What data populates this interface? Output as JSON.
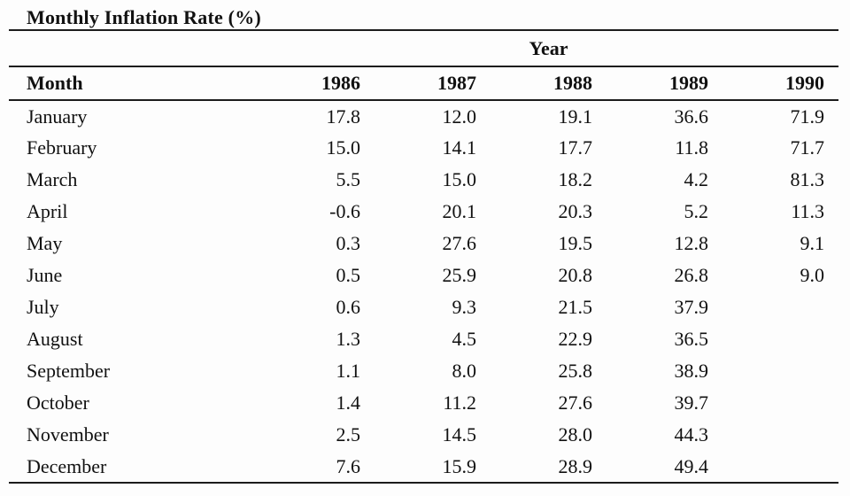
{
  "page": {
    "title": "Monthly Inflation Rate (%)"
  },
  "table": {
    "group_header": "Year",
    "month_header": "Month",
    "years": [
      "1986",
      "1987",
      "1988",
      "1989",
      "1990"
    ],
    "rows": [
      {
        "month": "January",
        "values": [
          "17.8",
          "12.0",
          "19.1",
          "36.6",
          "71.9"
        ]
      },
      {
        "month": "February",
        "values": [
          "15.0",
          "14.1",
          "17.7",
          "11.8",
          "71.7"
        ]
      },
      {
        "month": "March",
        "values": [
          "5.5",
          "15.0",
          "18.2",
          "4.2",
          "81.3"
        ]
      },
      {
        "month": "April",
        "values": [
          "-0.6",
          "20.1",
          "20.3",
          "5.2",
          "11.3"
        ]
      },
      {
        "month": "May",
        "values": [
          "0.3",
          "27.6",
          "19.5",
          "12.8",
          "9.1"
        ]
      },
      {
        "month": "June",
        "values": [
          "0.5",
          "25.9",
          "20.8",
          "26.8",
          "9.0"
        ]
      },
      {
        "month": "July",
        "values": [
          "0.6",
          "9.3",
          "21.5",
          "37.9",
          ""
        ]
      },
      {
        "month": "August",
        "values": [
          "1.3",
          "4.5",
          "22.9",
          "36.5",
          ""
        ]
      },
      {
        "month": "September",
        "values": [
          "1.1",
          "8.0",
          "25.8",
          "38.9",
          ""
        ]
      },
      {
        "month": "October",
        "values": [
          "1.4",
          "11.2",
          "27.6",
          "39.7",
          ""
        ]
      },
      {
        "month": "November",
        "values": [
          "2.5",
          "14.5",
          "28.0",
          "44.3",
          ""
        ]
      },
      {
        "month": "December",
        "values": [
          "7.6",
          "15.9",
          "28.9",
          "49.4",
          ""
        ]
      }
    ]
  },
  "chart_data": {
    "type": "table",
    "title": "Monthly Inflation Rate (%)",
    "column_group_label": "Year",
    "columns": [
      "Month",
      "1986",
      "1987",
      "1988",
      "1989",
      "1990"
    ],
    "categories": [
      "January",
      "February",
      "March",
      "April",
      "May",
      "June",
      "July",
      "August",
      "September",
      "October",
      "November",
      "December"
    ],
    "series": [
      {
        "name": "1986",
        "values": [
          17.8,
          15.0,
          5.5,
          -0.6,
          0.3,
          0.5,
          0.6,
          1.3,
          1.1,
          1.4,
          2.5,
          7.6
        ]
      },
      {
        "name": "1987",
        "values": [
          12.0,
          14.1,
          15.0,
          20.1,
          27.6,
          25.9,
          9.3,
          4.5,
          8.0,
          11.2,
          14.5,
          15.9
        ]
      },
      {
        "name": "1988",
        "values": [
          19.1,
          17.7,
          18.2,
          20.3,
          19.5,
          20.8,
          21.5,
          22.9,
          25.8,
          27.6,
          28.0,
          28.9
        ]
      },
      {
        "name": "1989",
        "values": [
          36.6,
          11.8,
          4.2,
          5.2,
          12.8,
          26.8,
          37.9,
          36.5,
          38.9,
          39.7,
          44.3,
          49.4
        ]
      },
      {
        "name": "1990",
        "values": [
          71.9,
          71.7,
          81.3,
          11.3,
          9.1,
          9.0,
          null,
          null,
          null,
          null,
          null,
          null
        ]
      }
    ]
  },
  "colors": {
    "background": "#fdfdfd",
    "text": "#111111",
    "rule": "#1c1c1c"
  }
}
